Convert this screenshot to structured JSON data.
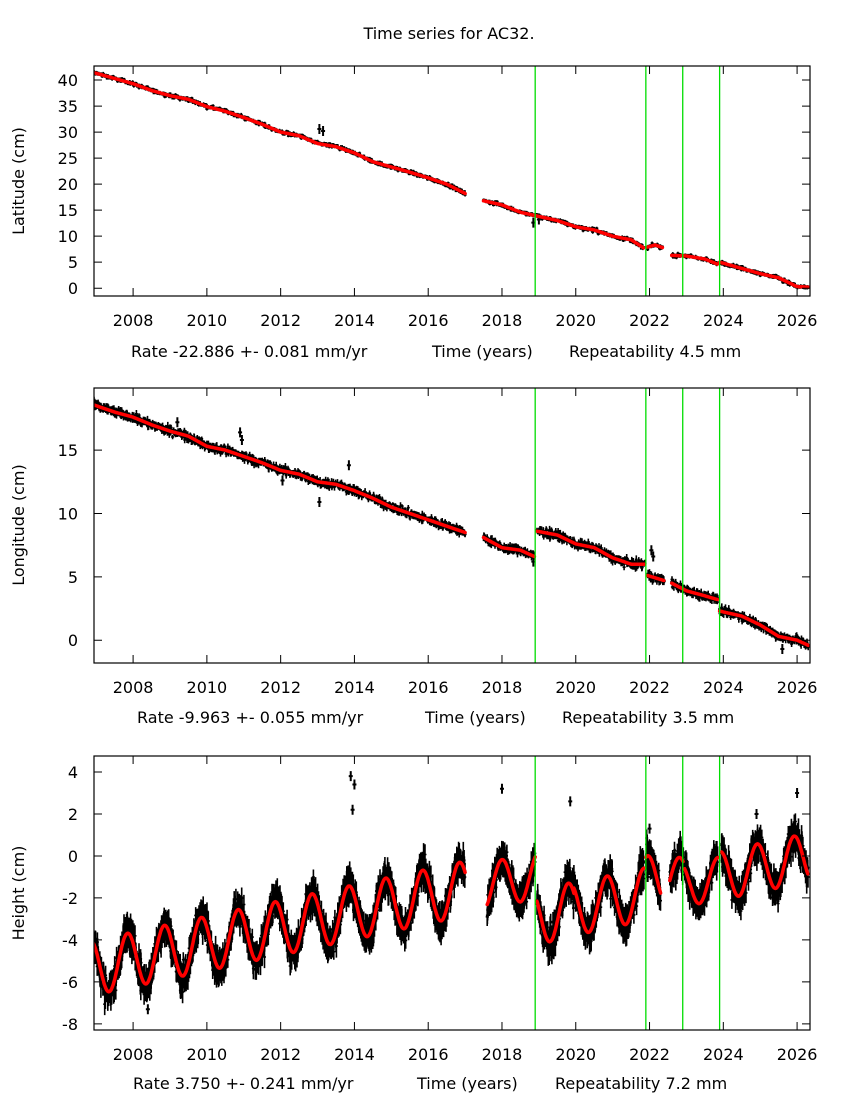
{
  "title": "Time series for AC32.",
  "colors": {
    "model": "#ff0000",
    "observations": "#000000",
    "event_lines": "#00dd00"
  },
  "chart_data": [
    {
      "type": "scatter",
      "ylabel": "Latitude (cm)",
      "xlabel_left": "Rate -22.886 +- 0.081 mm/yr",
      "xlabel": "Time (years)",
      "xlabel_right": "Repeatability 4.5 mm",
      "xlim": [
        2006.94,
        2026.35
      ],
      "ylim": [
        -1.5,
        42.7
      ],
      "xticks": [
        "2008",
        "2010",
        "2012",
        "2014",
        "2016",
        "2018",
        "2020",
        "2022",
        "2024",
        "2026"
      ],
      "yticks": [
        "0",
        "5",
        "10",
        "15",
        "20",
        "25",
        "30",
        "35",
        "40"
      ],
      "event_lines": [
        2018.9,
        2021.9,
        2022.9,
        2023.9
      ],
      "observed_spread": 0.6,
      "outliers": [
        [
          2013.05,
          30.6
        ],
        [
          2013.15,
          30.2
        ],
        [
          2018.85,
          12.6
        ],
        [
          2019.0,
          13.2
        ]
      ],
      "segments": [
        {
          "model": [
            [
              2006.9,
              41.5
            ],
            [
              2007.5,
              40.3
            ],
            [
              2008,
              39.3
            ],
            [
              2008.5,
              38.0
            ],
            [
              2009,
              37.0
            ],
            [
              2009.5,
              36.3
            ],
            [
              2010,
              34.9
            ],
            [
              2010.5,
              34.0
            ],
            [
              2011,
              32.8
            ],
            [
              2011.5,
              31.5
            ],
            [
              2012,
              30.0
            ],
            [
              2012.5,
              29.3
            ],
            [
              2013,
              27.8
            ],
            [
              2013.5,
              27.2
            ],
            [
              2014,
              26.0
            ],
            [
              2014.5,
              24.3
            ],
            [
              2015,
              23.3
            ],
            [
              2015.5,
              22.3
            ],
            [
              2016,
              21.2
            ],
            [
              2016.5,
              20.0
            ],
            [
              2017,
              18.2
            ]
          ]
        },
        {
          "model": [
            [
              2017.5,
              16.8
            ],
            [
              2018,
              16.0
            ],
            [
              2018.5,
              14.6
            ],
            [
              2019,
              13.8
            ],
            [
              2019.5,
              13.0
            ],
            [
              2020,
              11.8
            ],
            [
              2020.5,
              11.2
            ],
            [
              2021,
              10.0
            ],
            [
              2021.5,
              9.3
            ],
            [
              2021.85,
              7.7
            ]
          ]
        },
        {
          "model": [
            [
              2021.95,
              7.9
            ],
            [
              2022.15,
              8.3
            ],
            [
              2022.35,
              7.8
            ]
          ]
        },
        {
          "model": [
            [
              2022.6,
              6.3
            ],
            [
              2023,
              6.2
            ],
            [
              2023.5,
              5.6
            ],
            [
              2023.85,
              4.6
            ]
          ]
        },
        {
          "model": [
            [
              2023.9,
              5.0
            ],
            [
              2024.5,
              3.8
            ],
            [
              2025,
              2.8
            ],
            [
              2025.5,
              2.0
            ],
            [
              2026,
              0.3
            ],
            [
              2026.3,
              0.2
            ]
          ]
        }
      ]
    },
    {
      "type": "scatter",
      "ylabel": "Longitude (cm)",
      "xlabel_left": "Rate -9.963 +- 0.055 mm/yr",
      "xlabel": "Time (years)",
      "xlabel_right": "Repeatability 3.5 mm",
      "xlim": [
        2006.94,
        2026.35
      ],
      "ylim": [
        -1.8,
        19.9
      ],
      "xticks": [
        "2008",
        "2010",
        "2012",
        "2014",
        "2016",
        "2018",
        "2020",
        "2022",
        "2024",
        "2026"
      ],
      "yticks": [
        "0",
        "5",
        "10",
        "15"
      ],
      "event_lines": [
        2018.9,
        2021.9,
        2022.9,
        2023.9
      ],
      "observed_spread": 0.45,
      "outliers": [
        [
          2010.9,
          16.4
        ],
        [
          2010.95,
          15.8
        ],
        [
          2012.05,
          12.6
        ],
        [
          2013.05,
          10.9
        ],
        [
          2013.85,
          13.8
        ],
        [
          2009.2,
          17.2
        ],
        [
          2022.05,
          7.1
        ],
        [
          2022.1,
          6.6
        ],
        [
          2018.85,
          6.2
        ],
        [
          2025.6,
          -0.7
        ]
      ],
      "segments": [
        {
          "model": [
            [
              2006.9,
              18.6
            ],
            [
              2007.5,
              18.0
            ],
            [
              2008,
              17.6
            ],
            [
              2008.5,
              17.0
            ],
            [
              2009,
              16.5
            ],
            [
              2009.5,
              16.1
            ],
            [
              2010,
              15.3
            ],
            [
              2010.5,
              15.0
            ],
            [
              2011,
              14.5
            ],
            [
              2011.5,
              14.0
            ],
            [
              2012,
              13.4
            ],
            [
              2012.5,
              13.1
            ],
            [
              2013,
              12.5
            ],
            [
              2013.5,
              12.3
            ],
            [
              2014,
              11.8
            ],
            [
              2014.5,
              11.2
            ],
            [
              2015,
              10.5
            ],
            [
              2015.5,
              10.0
            ],
            [
              2016,
              9.5
            ],
            [
              2016.5,
              9.0
            ],
            [
              2017,
              8.5
            ]
          ]
        },
        {
          "model": [
            [
              2017.5,
              8.1
            ],
            [
              2018,
              7.3
            ],
            [
              2018.5,
              7.1
            ],
            [
              2018.88,
              6.6
            ]
          ]
        },
        {
          "model": [
            [
              2018.95,
              8.6
            ],
            [
              2019.5,
              8.3
            ],
            [
              2020,
              7.6
            ],
            [
              2020.5,
              7.3
            ],
            [
              2021,
              6.5
            ],
            [
              2021.5,
              6.0
            ],
            [
              2021.88,
              6.0
            ]
          ]
        },
        {
          "model": [
            [
              2021.95,
              5.1
            ],
            [
              2022.4,
              4.7
            ]
          ]
        },
        {
          "model": [
            [
              2022.6,
              4.5
            ],
            [
              2023,
              3.9
            ],
            [
              2023.5,
              3.5
            ],
            [
              2023.85,
              3.2
            ]
          ]
        },
        {
          "model": [
            [
              2023.9,
              2.3
            ],
            [
              2024.5,
              1.9
            ],
            [
              2025,
              1.2
            ],
            [
              2025.5,
              0.3
            ],
            [
              2026,
              0.0
            ],
            [
              2026.3,
              -0.4
            ]
          ]
        }
      ]
    },
    {
      "type": "scatter",
      "ylabel": "Height (cm)",
      "xlabel_left": "Rate 3.750 +- 0.241 mm/yr",
      "xlabel": "Time (years)",
      "xlabel_right": "Repeatability 7.2 mm",
      "xlim": [
        2006.94,
        2026.35
      ],
      "ylim": [
        -8.29,
        4.76
      ],
      "xticks": [
        "2008",
        "2010",
        "2012",
        "2014",
        "2016",
        "2018",
        "2020",
        "2022",
        "2024",
        "2026"
      ],
      "yticks": [
        "-8",
        "-6",
        "-4",
        "-2",
        "0",
        "2",
        "4"
      ],
      "event_lines": [
        2018.9,
        2021.9,
        2022.9,
        2023.9
      ],
      "rate_cm_per_yr": 0.375,
      "observed_spread": 1.0,
      "outliers": [
        [
          2013.9,
          3.8
        ],
        [
          2014.0,
          3.4
        ],
        [
          2013.95,
          2.2
        ],
        [
          2018.0,
          3.2
        ],
        [
          2019.85,
          2.6
        ],
        [
          2022.0,
          1.3
        ],
        [
          2021.95,
          -1.0
        ],
        [
          2024.9,
          2.0
        ],
        [
          2026.0,
          3.0
        ],
        [
          2008.4,
          -7.3
        ]
      ],
      "segments": [
        {
          "range": [
            2006.9,
            2017.0
          ],
          "mean_2007": -5.3,
          "annual_amp": 1.3,
          "peak": 0.85
        },
        {
          "range": [
            2017.6,
            2018.9
          ],
          "mean_2007": -5.4,
          "annual_amp": 1.1,
          "peak": 0.0
        },
        {
          "range": [
            2018.95,
            2019.95
          ],
          "mean_2007": -7.4,
          "annual_amp": 1.3,
          "peak": 0.8
        },
        {
          "range": [
            2019.95,
            2021.85
          ],
          "mean_2007": -7.4,
          "annual_amp": 1.25,
          "peak": 0.85
        },
        {
          "range": [
            2021.9,
            2022.3
          ],
          "mean_2007": -6.8,
          "annual_amp": 1.2,
          "peak": 0.95
        },
        {
          "range": [
            2022.55,
            2022.92
          ],
          "mean_2007": -7.0,
          "annual_amp": 1.0,
          "peak": 0.8
        },
        {
          "range": [
            2022.95,
            2023.85
          ],
          "mean_2007": -7.4,
          "annual_amp": 1.0,
          "peak": 0.85
        },
        {
          "range": [
            2023.95,
            2026.3
          ],
          "mean_2007": -7.3,
          "annual_amp": 1.15,
          "peak": 0.92
        }
      ]
    }
  ]
}
